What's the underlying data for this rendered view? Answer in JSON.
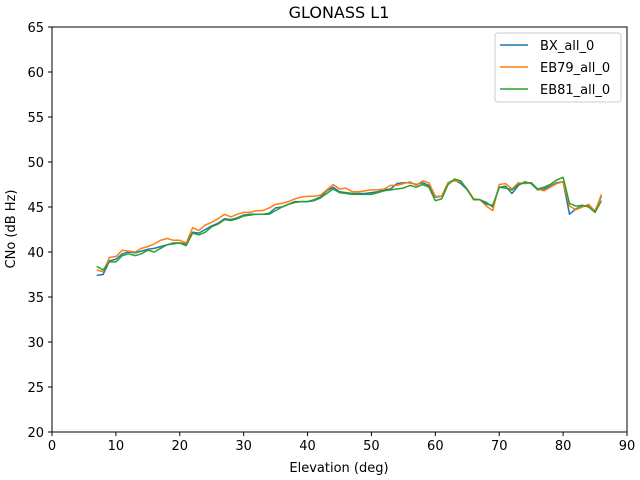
{
  "chart_data": {
    "type": "line",
    "title": "GLONASS L1",
    "xlabel": "Elevation (deg)",
    "ylabel": "CNo (dB Hz)",
    "xlim": [
      0,
      90
    ],
    "ylim": [
      20,
      65
    ],
    "xticks": [
      0,
      10,
      20,
      30,
      40,
      50,
      60,
      70,
      80,
      90
    ],
    "yticks": [
      20,
      25,
      30,
      35,
      40,
      45,
      50,
      55,
      60,
      65
    ],
    "grid": false,
    "legend_position": "top-right",
    "series": [
      {
        "name": "BX_all_0",
        "color": "#1f77b4",
        "x": [
          7,
          8,
          9,
          10,
          11,
          12,
          13,
          14,
          15,
          16,
          17,
          18,
          19,
          20,
          21,
          22,
          23,
          24,
          25,
          26,
          27,
          28,
          29,
          30,
          31,
          32,
          33,
          34,
          35,
          36,
          37,
          38,
          39,
          40,
          41,
          42,
          43,
          44,
          45,
          46,
          47,
          48,
          49,
          50,
          51,
          52,
          53,
          54,
          55,
          56,
          57,
          58,
          59,
          60,
          61,
          62,
          63,
          64,
          65,
          66,
          67,
          68,
          69,
          70,
          71,
          72,
          73,
          74,
          75,
          76,
          77,
          78,
          79,
          80,
          81,
          82,
          83,
          84,
          85,
          86
        ],
        "y": [
          37.4,
          37.5,
          39.0,
          39.2,
          39.8,
          40.0,
          39.9,
          40.1,
          40.3,
          40.4,
          40.6,
          40.8,
          41.0,
          41.0,
          40.9,
          42.2,
          42.1,
          42.5,
          42.9,
          43.2,
          43.7,
          43.6,
          43.8,
          44.1,
          44.2,
          44.2,
          44.2,
          44.3,
          44.9,
          45.0,
          45.3,
          45.6,
          45.6,
          45.6,
          45.8,
          46.1,
          46.8,
          47.2,
          46.7,
          46.6,
          46.5,
          46.5,
          46.5,
          46.6,
          46.7,
          46.9,
          47.0,
          47.6,
          47.7,
          47.7,
          47.5,
          47.7,
          47.4,
          46.1,
          46.2,
          47.7,
          48.0,
          47.6,
          46.9,
          45.9,
          45.8,
          45.5,
          45.0,
          47.2,
          47.3,
          46.5,
          47.4,
          47.8,
          47.6,
          46.9,
          47.0,
          47.3,
          47.7,
          47.8,
          44.2,
          44.8,
          45.1,
          45.1,
          44.6,
          46.2
        ]
      },
      {
        "name": "EB79_all_0",
        "color": "#ff7f0e",
        "x": [
          7,
          8,
          9,
          10,
          11,
          12,
          13,
          14,
          15,
          16,
          17,
          18,
          19,
          20,
          21,
          22,
          23,
          24,
          25,
          26,
          27,
          28,
          29,
          30,
          31,
          32,
          33,
          34,
          35,
          36,
          37,
          38,
          39,
          40,
          41,
          42,
          43,
          44,
          45,
          46,
          47,
          48,
          49,
          50,
          51,
          52,
          53,
          54,
          55,
          56,
          57,
          58,
          59,
          60,
          61,
          62,
          63,
          64,
          65,
          66,
          67,
          68,
          69,
          70,
          71,
          72,
          73,
          74,
          75,
          76,
          77,
          78,
          79,
          80,
          81,
          82,
          83,
          84,
          85,
          86
        ],
        "y": [
          38.0,
          37.8,
          39.4,
          39.5,
          40.2,
          40.1,
          40.0,
          40.4,
          40.6,
          40.9,
          41.3,
          41.5,
          41.3,
          41.3,
          41.0,
          42.7,
          42.4,
          43.0,
          43.3,
          43.7,
          44.2,
          43.9,
          44.2,
          44.4,
          44.4,
          44.6,
          44.6,
          44.9,
          45.3,
          45.4,
          45.6,
          45.9,
          46.1,
          46.2,
          46.2,
          46.3,
          46.9,
          47.5,
          47.0,
          47.1,
          46.7,
          46.7,
          46.8,
          46.9,
          46.9,
          47.0,
          47.4,
          47.4,
          47.6,
          47.8,
          47.4,
          47.9,
          47.7,
          46.2,
          46.2,
          47.7,
          47.9,
          47.8,
          47.0,
          45.9,
          45.8,
          45.1,
          44.6,
          47.5,
          47.6,
          47.0,
          47.7,
          47.6,
          47.7,
          47.0,
          46.8,
          47.2,
          47.6,
          47.8,
          45.1,
          44.7,
          45.0,
          45.3,
          44.5,
          46.4
        ]
      },
      {
        "name": "EB81_all_0",
        "color": "#2ca02c",
        "x": [
          7,
          8,
          9,
          10,
          11,
          12,
          13,
          14,
          15,
          16,
          17,
          18,
          19,
          20,
          21,
          22,
          23,
          24,
          25,
          26,
          27,
          28,
          29,
          30,
          31,
          32,
          33,
          34,
          35,
          36,
          37,
          38,
          39,
          40,
          41,
          42,
          43,
          44,
          45,
          46,
          47,
          48,
          49,
          50,
          51,
          52,
          53,
          54,
          55,
          56,
          57,
          58,
          59,
          60,
          61,
          62,
          63,
          64,
          65,
          66,
          67,
          68,
          69,
          70,
          71,
          72,
          73,
          74,
          75,
          76,
          77,
          78,
          79,
          80,
          81,
          82,
          83,
          84,
          85,
          86
        ],
        "y": [
          38.4,
          38.0,
          38.9,
          38.9,
          39.6,
          39.8,
          39.6,
          39.8,
          40.2,
          40.0,
          40.4,
          40.8,
          40.9,
          41.0,
          40.7,
          42.1,
          41.9,
          42.2,
          42.8,
          43.1,
          43.6,
          43.5,
          43.7,
          44.0,
          44.1,
          44.2,
          44.2,
          44.2,
          44.6,
          45.0,
          45.3,
          45.5,
          45.6,
          45.6,
          45.7,
          46.0,
          46.5,
          47.0,
          46.6,
          46.5,
          46.4,
          46.4,
          46.4,
          46.4,
          46.6,
          46.8,
          46.9,
          47.0,
          47.1,
          47.4,
          47.2,
          47.5,
          47.2,
          45.7,
          45.9,
          47.5,
          48.1,
          47.9,
          46.9,
          45.8,
          45.8,
          45.3,
          45.2,
          47.2,
          47.1,
          46.9,
          47.5,
          47.7,
          47.7,
          47.0,
          47.2,
          47.5,
          48.0,
          48.3,
          45.4,
          45.1,
          45.2,
          45.0,
          44.4,
          45.7
        ]
      }
    ]
  }
}
